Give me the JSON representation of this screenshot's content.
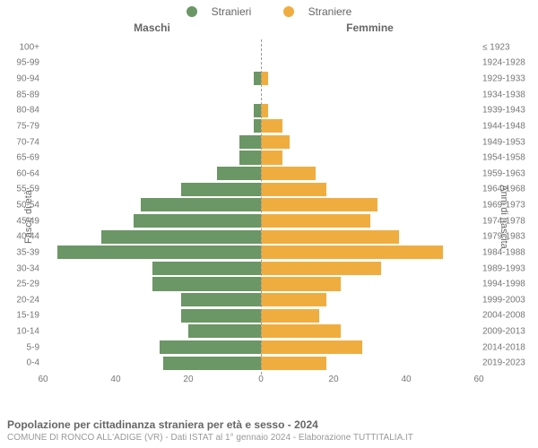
{
  "legend": {
    "male_label": "Stranieri",
    "female_label": "Straniere"
  },
  "headers": {
    "left": "Maschi",
    "right": "Femmine"
  },
  "axis_titles": {
    "left": "Fasce di età",
    "right": "Anni di nascita"
  },
  "caption": {
    "line1": "Popolazione per cittadinanza straniera per età e sesso - 2024",
    "line2": "COMUNE DI RONCO ALL'ADIGE (VR) - Dati ISTAT al 1° gennaio 2024 - Elaborazione TUTTITALIA.IT"
  },
  "chart": {
    "type": "population-pyramid",
    "male_color": "#6b9665",
    "female_color": "#f0ad3f",
    "background_color": "#ffffff",
    "grid_color": "#e0e0e0",
    "text_color": "#777777",
    "label_fontsize": 10,
    "x_max": 60,
    "x_ticks_left": [
      60,
      40,
      20,
      0
    ],
    "x_ticks_right": [
      0,
      20,
      40,
      60
    ],
    "rows": [
      {
        "age": "100+",
        "birth": "≤ 1923",
        "m": 0,
        "f": 0
      },
      {
        "age": "95-99",
        "birth": "1924-1928",
        "m": 0,
        "f": 0
      },
      {
        "age": "90-94",
        "birth": "1929-1933",
        "m": 2,
        "f": 2
      },
      {
        "age": "85-89",
        "birth": "1934-1938",
        "m": 0,
        "f": 0
      },
      {
        "age": "80-84",
        "birth": "1939-1943",
        "m": 2,
        "f": 2
      },
      {
        "age": "75-79",
        "birth": "1944-1948",
        "m": 2,
        "f": 6
      },
      {
        "age": "70-74",
        "birth": "1949-1953",
        "m": 6,
        "f": 8
      },
      {
        "age": "65-69",
        "birth": "1954-1958",
        "m": 6,
        "f": 6
      },
      {
        "age": "60-64",
        "birth": "1959-1963",
        "m": 12,
        "f": 15
      },
      {
        "age": "55-59",
        "birth": "1964-1968",
        "m": 22,
        "f": 18
      },
      {
        "age": "50-54",
        "birth": "1969-1973",
        "m": 33,
        "f": 32
      },
      {
        "age": "45-49",
        "birth": "1974-1978",
        "m": 35,
        "f": 30
      },
      {
        "age": "40-44",
        "birth": "1979-1983",
        "m": 44,
        "f": 38
      },
      {
        "age": "35-39",
        "birth": "1984-1988",
        "m": 56,
        "f": 50
      },
      {
        "age": "30-34",
        "birth": "1989-1993",
        "m": 30,
        "f": 33
      },
      {
        "age": "25-29",
        "birth": "1994-1998",
        "m": 30,
        "f": 22
      },
      {
        "age": "20-24",
        "birth": "1999-2003",
        "m": 22,
        "f": 18
      },
      {
        "age": "15-19",
        "birth": "2004-2008",
        "m": 22,
        "f": 16
      },
      {
        "age": "10-14",
        "birth": "2009-2013",
        "m": 20,
        "f": 22
      },
      {
        "age": "5-9",
        "birth": "2014-2018",
        "m": 28,
        "f": 28
      },
      {
        "age": "0-4",
        "birth": "2019-2023",
        "m": 27,
        "f": 18
      }
    ]
  }
}
